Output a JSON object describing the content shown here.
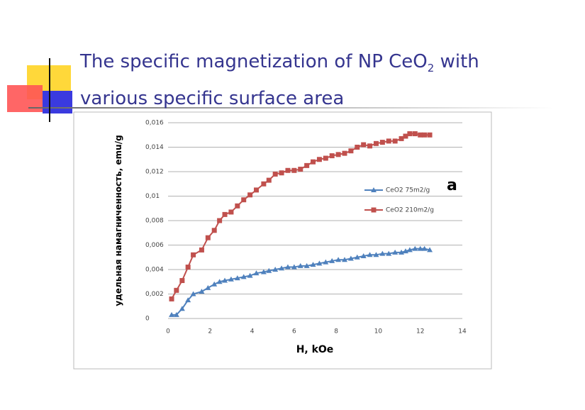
{
  "slide": {
    "title": [
      "The specific magnetization of NP CeO",
      "2",
      "with various specific surface area"
    ]
  },
  "chart_data": {
    "type": "line",
    "x_label": "H, kOe",
    "y_label": "удельная намагниченность, emu/g",
    "annotation": "a",
    "x": [
      0.17,
      0.4,
      0.67,
      0.95,
      1.2,
      1.6,
      1.9,
      2.2,
      2.45,
      2.7,
      3.0,
      3.3,
      3.6,
      3.9,
      4.2,
      4.55,
      4.8,
      5.1,
      5.4,
      5.7,
      6.0,
      6.3,
      6.6,
      6.9,
      7.2,
      7.5,
      7.8,
      8.1,
      8.4,
      8.7,
      9.0,
      9.3,
      9.6,
      9.9,
      10.2,
      10.5,
      10.8,
      11.1,
      11.3,
      11.5,
      11.75,
      12.0,
      12.2,
      12.45
    ],
    "series": [
      {
        "name": "CeO2 75m2/g",
        "color": "#4f81bd",
        "marker": "triangle",
        "values": [
          0.0003,
          0.0003,
          0.0008,
          0.0015,
          0.002,
          0.0022,
          0.0025,
          0.0028,
          0.003,
          0.0031,
          0.0032,
          0.0033,
          0.0034,
          0.0035,
          0.0037,
          0.0038,
          0.0039,
          0.004,
          0.0041,
          0.0042,
          0.0042,
          0.0043,
          0.0043,
          0.0044,
          0.0045,
          0.0046,
          0.0047,
          0.0048,
          0.0048,
          0.0049,
          0.005,
          0.0051,
          0.0052,
          0.0052,
          0.0053,
          0.0053,
          0.0054,
          0.0054,
          0.0055,
          0.0056,
          0.0057,
          0.0057,
          0.0057,
          0.0056
        ]
      },
      {
        "name": "CeO2 210m2/g",
        "color": "#c0504d",
        "marker": "square",
        "values": [
          0.0016,
          0.0023,
          0.0031,
          0.0042,
          0.0052,
          0.0056,
          0.0066,
          0.0072,
          0.008,
          0.0085,
          0.0087,
          0.0092,
          0.0097,
          0.0101,
          0.0105,
          0.011,
          0.0113,
          0.0118,
          0.0119,
          0.0121,
          0.0121,
          0.0122,
          0.0125,
          0.0128,
          0.013,
          0.0131,
          0.0133,
          0.0134,
          0.0135,
          0.0137,
          0.014,
          0.0142,
          0.0141,
          0.0143,
          0.0144,
          0.0145,
          0.0145,
          0.0147,
          0.0149,
          0.0151,
          0.0151,
          0.015,
          0.015,
          0.015
        ]
      }
    ],
    "xlim": [
      0,
      14
    ],
    "xticks": [
      0,
      2,
      4,
      6,
      8,
      10,
      12,
      14
    ],
    "ylim": [
      0,
      0.016
    ],
    "yticks": [
      0,
      {
        "value": 0.002,
        "label": "0,002"
      },
      {
        "value": 0.004,
        "label": "0,004"
      },
      {
        "value": 0.006,
        "label": "0,006"
      },
      {
        "value": 0.008,
        "label": "0,008"
      },
      {
        "value": 0.01,
        "label": "0,01"
      },
      {
        "value": 0.012,
        "label": "0,012"
      },
      {
        "value": 0.014,
        "label": "0,014"
      },
      {
        "value": 0.016,
        "label": "0,016"
      }
    ],
    "grid": true
  }
}
